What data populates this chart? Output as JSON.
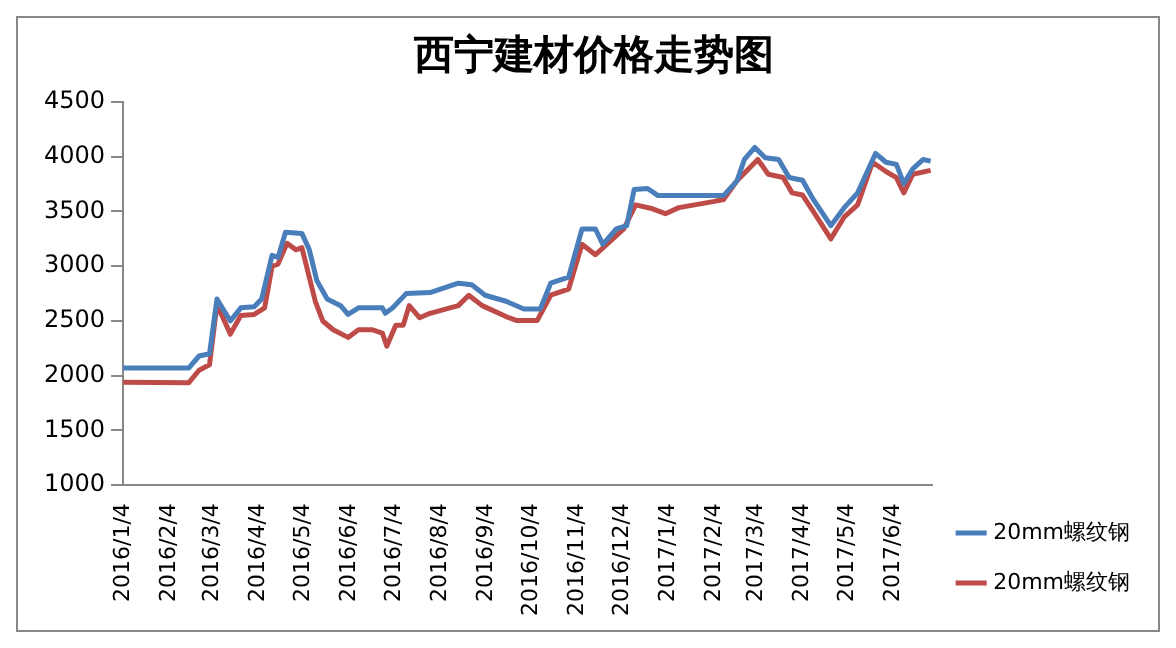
{
  "chart_data": {
    "type": "line",
    "title": "西宁建材价格走势图",
    "xlim": [
      "2016-01-04",
      "2017-06-30"
    ],
    "xticks": [
      {
        "value": "2016-01-04",
        "label": "2016/1/4"
      },
      {
        "value": "2016-02-04",
        "label": "2016/2/4"
      },
      {
        "value": "2016-03-04",
        "label": "2016/3/4"
      },
      {
        "value": "2016-04-04",
        "label": "2016/4/4"
      },
      {
        "value": "2016-05-04",
        "label": "2016/5/4"
      },
      {
        "value": "2016-06-04",
        "label": "2016/6/4"
      },
      {
        "value": "2016-07-04",
        "label": "2016/7/4"
      },
      {
        "value": "2016-08-04",
        "label": "2016/8/4"
      },
      {
        "value": "2016-09-04",
        "label": "2016/9/4"
      },
      {
        "value": "2016-10-04",
        "label": "2016/10/4"
      },
      {
        "value": "2016-11-04",
        "label": "2016/11/4"
      },
      {
        "value": "2016-12-04",
        "label": "2016/12/4"
      },
      {
        "value": "2017-01-04",
        "label": "2017/1/4"
      },
      {
        "value": "2017-02-04",
        "label": "2017/2/4"
      },
      {
        "value": "2017-03-04",
        "label": "2017/3/4"
      },
      {
        "value": "2017-04-04",
        "label": "2017/4/4"
      },
      {
        "value": "2017-05-04",
        "label": "2017/5/4"
      },
      {
        "value": "2017-06-04",
        "label": "2017/6/4"
      }
    ],
    "ylim": [
      1000,
      4500
    ],
    "yticks": [
      1000,
      1500,
      2000,
      2500,
      3000,
      3500,
      4000,
      4500
    ],
    "grid": false,
    "legend": "right",
    "marker": "none",
    "line_style": "solid",
    "series": [
      {
        "name": "20mm螺纹钢",
        "color": "#4a7ebb",
        "x": [
          "2016-01-04",
          "2016-02-17",
          "2016-02-24",
          "2016-03-02",
          "2016-03-07",
          "2016-03-16",
          "2016-03-23",
          "2016-04-01",
          "2016-04-06",
          "2016-04-13",
          "2016-04-17",
          "2016-04-22",
          "2016-05-03",
          "2016-05-08",
          "2016-05-13",
          "2016-05-20",
          "2016-05-29",
          "2016-06-03",
          "2016-06-10",
          "2016-06-26",
          "2016-06-28",
          "2016-07-03",
          "2016-07-12",
          "2016-07-28",
          "2016-08-16",
          "2016-08-25",
          "2016-09-03",
          "2016-09-17",
          "2016-09-29",
          "2016-10-10",
          "2016-10-17",
          "2016-10-29",
          "2016-11-07",
          "2016-11-16",
          "2016-11-21",
          "2016-11-30",
          "2016-12-07",
          "2016-12-12",
          "2016-12-21",
          "2016-12-28",
          "2017-02-10",
          "2017-02-19",
          "2017-02-24",
          "2017-03-03",
          "2017-03-10",
          "2017-03-19",
          "2017-03-26",
          "2017-04-04",
          "2017-04-11",
          "2017-04-23",
          "2017-05-02",
          "2017-05-11",
          "2017-05-23",
          "2017-05-30",
          "2017-06-06",
          "2017-06-11",
          "2017-06-17",
          "2017-06-24",
          "2017-06-29"
        ],
        "values": [
          2070,
          2070,
          2180,
          2200,
          2700,
          2500,
          2620,
          2630,
          2700,
          3100,
          3080,
          3310,
          3300,
          3150,
          2870,
          2700,
          2640,
          2560,
          2620,
          2620,
          2570,
          2620,
          2750,
          2760,
          2845,
          2830,
          2735,
          2680,
          2610,
          2610,
          2845,
          2900,
          3340,
          3340,
          3200,
          3340,
          3370,
          3700,
          3710,
          3645,
          3645,
          3780,
          3975,
          4085,
          3990,
          3975,
          3810,
          3785,
          3615,
          3370,
          3535,
          3670,
          4030,
          3950,
          3930,
          3755,
          3890,
          3975,
          3960
        ]
      },
      {
        "name": "20mm螺纹钢",
        "color": "#be4b48",
        "x": [
          "2016-01-04",
          "2016-02-17",
          "2016-02-24",
          "2016-03-02",
          "2016-03-07",
          "2016-03-16",
          "2016-03-23",
          "2016-04-01",
          "2016-04-08",
          "2016-04-13",
          "2016-04-17",
          "2016-04-23",
          "2016-04-29",
          "2016-05-03",
          "2016-05-12",
          "2016-05-17",
          "2016-05-24",
          "2016-06-03",
          "2016-06-10",
          "2016-06-19",
          "2016-06-26",
          "2016-06-29",
          "2016-07-05",
          "2016-07-10",
          "2016-07-14",
          "2016-07-21",
          "2016-07-28",
          "2016-08-16",
          "2016-08-23",
          "2016-09-01",
          "2016-09-17",
          "2016-09-24",
          "2016-10-08",
          "2016-10-17",
          "2016-10-29",
          "2016-11-07",
          "2016-11-16",
          "2016-11-26",
          "2016-12-05",
          "2016-12-13",
          "2016-12-23",
          "2017-01-02",
          "2017-01-11",
          "2017-02-03",
          "2017-02-10",
          "2017-02-19",
          "2017-03-05",
          "2017-03-12",
          "2017-03-22",
          "2017-03-28",
          "2017-04-04",
          "2017-04-11",
          "2017-04-23",
          "2017-05-02",
          "2017-05-11",
          "2017-05-21",
          "2017-05-30",
          "2017-06-06",
          "2017-06-11",
          "2017-06-17",
          "2017-06-29"
        ],
        "values": [
          1940,
          1935,
          2050,
          2100,
          2650,
          2380,
          2550,
          2560,
          2620,
          3000,
          3020,
          3210,
          3150,
          3170,
          2680,
          2500,
          2420,
          2350,
          2420,
          2420,
          2390,
          2270,
          2460,
          2460,
          2640,
          2530,
          2570,
          2640,
          2735,
          2640,
          2540,
          2505,
          2505,
          2735,
          2790,
          3200,
          3105,
          3230,
          3340,
          3560,
          3530,
          3480,
          3535,
          3590,
          3610,
          3780,
          3975,
          3840,
          3810,
          3670,
          3650,
          3505,
          3250,
          3450,
          3560,
          3950,
          3865,
          3810,
          3670,
          3840,
          3875
        ]
      }
    ]
  }
}
